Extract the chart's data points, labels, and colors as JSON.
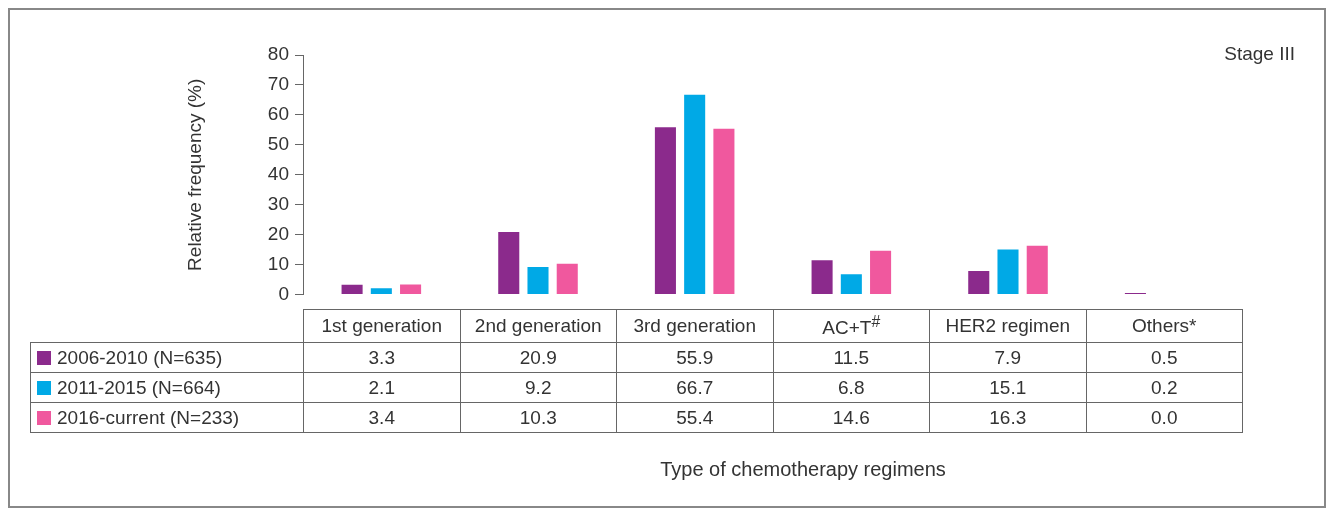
{
  "chart_data": {
    "type": "bar",
    "title": "Stage III",
    "ylabel": "Relative frequency (%)",
    "annotations": [
      "Type of chemotherapy regimens"
    ],
    "categories": [
      "1st generation",
      "2nd generation",
      "3rd generation",
      "AC+T$^{#}$",
      "HER2 regimen",
      "Others*"
    ],
    "series": [
      {
        "name": "2006-2010 (N=635)",
        "color": "#8b2a8c",
        "values": [
          3.3,
          20.9,
          55.9,
          11.5,
          7.9,
          0.5
        ],
        "value_labels": [
          "3.3",
          "20.9",
          "55.9",
          "11.5",
          "7.9",
          "0.5"
        ]
      },
      {
        "name": "2011-2015 (N=664)",
        "color": "#00a9e6",
        "values": [
          2.1,
          9.2,
          66.7,
          6.8,
          15.1,
          0.2
        ],
        "value_labels": [
          "2.1",
          "9.2",
          "66.7",
          "6.8",
          "15.1",
          "0.2"
        ]
      },
      {
        "name": "2016-current (N=233)",
        "color": "#f0589e",
        "values": [
          3.4,
          10.3,
          55.4,
          14.6,
          16.3,
          0.0
        ],
        "value_labels": [
          "3.4",
          "10.3",
          "55.4",
          "14.6",
          "16.3",
          "0.0"
        ]
      }
    ],
    "ylim": [
      0,
      80
    ],
    "yticks": [
      0,
      10,
      20,
      30,
      40,
      50,
      60,
      70,
      80
    ],
    "grid": false,
    "legend": "bottom"
  }
}
